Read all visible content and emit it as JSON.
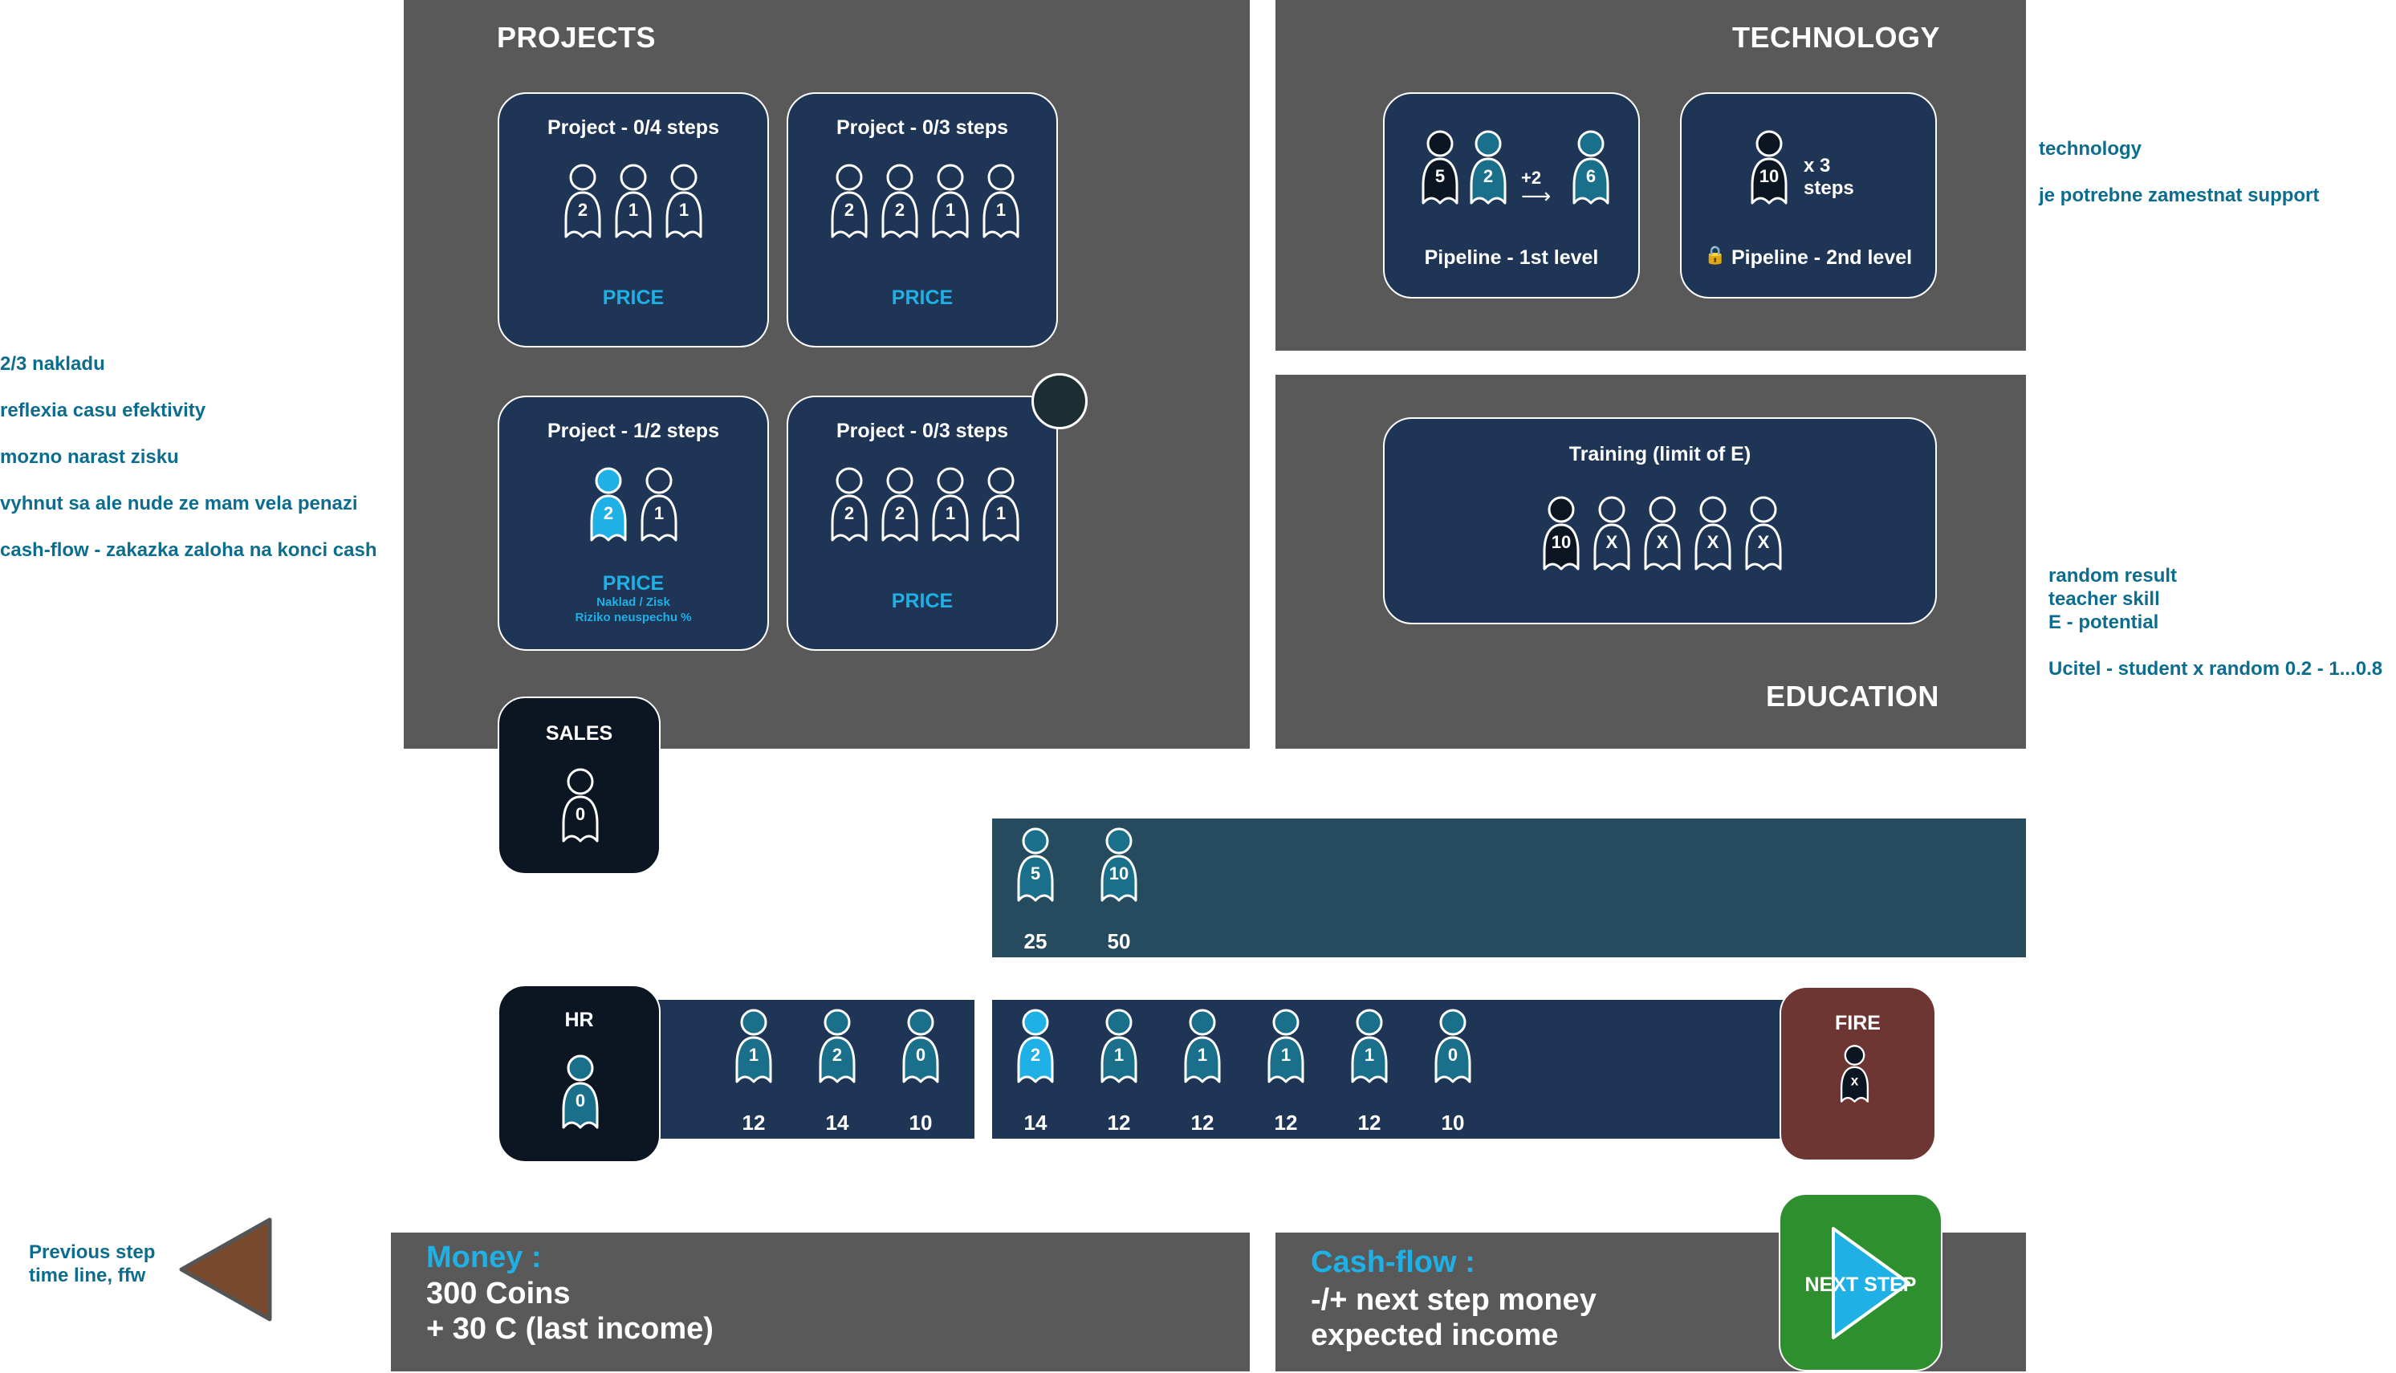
{
  "projects": {
    "title": "PROJECTS",
    "cards": [
      {
        "title": "Project - 0/4 steps",
        "workers": [
          "2",
          "1",
          "1"
        ],
        "price": "PRICE"
      },
      {
        "title": "Project - 0/3 steps",
        "workers": [
          "2",
          "2",
          "1",
          "1"
        ],
        "price": "PRICE"
      },
      {
        "title": "Project - 1/2 steps",
        "workers": [
          "2",
          "1"
        ],
        "price": "PRICE",
        "sub1": "Naklad / Zisk",
        "sub2": "Riziko neuspechu %"
      },
      {
        "title": "Project - 0/3 steps",
        "workers": [
          "2",
          "2",
          "1",
          "1"
        ],
        "price": "PRICE"
      }
    ]
  },
  "technology": {
    "title": "TECHNOLOGY",
    "level1": {
      "title": "Pipeline - 1st level",
      "a": "5",
      "b": "2",
      "arrow_label": "+2",
      "result": "6"
    },
    "level2": {
      "title": "Pipeline - 2nd level",
      "lock": "🔒",
      "worker": "10",
      "steps_line1": "x 3",
      "steps_line2": "steps"
    }
  },
  "education": {
    "title": "EDUCATION",
    "training": {
      "title": "Training (limit of E)",
      "workers": [
        "10",
        "X",
        "X",
        "X",
        "X"
      ]
    }
  },
  "sales": {
    "label": "SALES",
    "worker": "0"
  },
  "hr": {
    "label": "HR",
    "worker": "0"
  },
  "fire": {
    "label": "FIRE",
    "worker": "x"
  },
  "sales_pool": [
    {
      "level": "5",
      "wage": "25"
    },
    {
      "level": "10",
      "wage": "50"
    }
  ],
  "hr_pool": [
    {
      "level": "1",
      "wage": "12"
    },
    {
      "level": "2",
      "wage": "14"
    },
    {
      "level": "0",
      "wage": "10"
    }
  ],
  "staff_pool": [
    {
      "level": "2",
      "wage": "14"
    },
    {
      "level": "1",
      "wage": "12"
    },
    {
      "level": "1",
      "wage": "12"
    },
    {
      "level": "1",
      "wage": "12"
    },
    {
      "level": "1",
      "wage": "12"
    },
    {
      "level": "0",
      "wage": "10"
    }
  ],
  "money": {
    "label": "Money :",
    "line1": "300 Coins",
    "line2": "+ 30 C (last income)"
  },
  "cashflow": {
    "label": "Cash-flow :",
    "line1": "-/+ next step money",
    "line2": "expected income"
  },
  "next_step": {
    "label": "NEXT STEP"
  },
  "previous": {
    "line1": "Previous  step",
    "line2": "time line, ffw"
  },
  "notes_left": [
    "2/3 nakladu",
    "reflexia casu efektivity",
    "mozno narast zisku",
    "vyhnut sa ale nude ze mam vela penazi",
    "cash-flow - zakazka zaloha na konci cash"
  ],
  "notes_right_top": [
    "technology",
    "je potrebne zamestnat support"
  ],
  "notes_right_mid": [
    "random result",
    "teacher skill",
    "E - potential",
    "Ucitel - student x random 0.2 - 1...0.8"
  ],
  "colors": {
    "panel": "#595959",
    "card": "#1f3556",
    "accent": "#1fb0e6",
    "note": "#0c6d8f",
    "sales_strip": "#264b5e",
    "staff_strip": "#1f3556",
    "fire": "#6e3632",
    "next": "#2e8f2e",
    "prev": "#7a4a2e"
  }
}
